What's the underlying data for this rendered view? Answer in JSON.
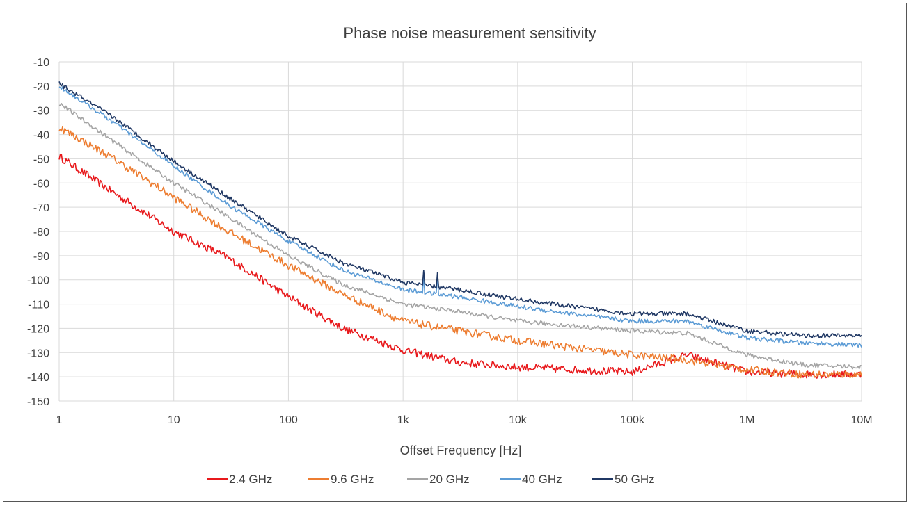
{
  "chart_data": {
    "type": "line",
    "title": "Phase noise measurement sensitivity",
    "xlabel": "Offset Frequency [Hz]",
    "ylabel": "",
    "x_scale": "log",
    "xlim": [
      1,
      10000000
    ],
    "ylim": [
      -150,
      -10
    ],
    "grid": true,
    "legend_position": "bottom",
    "x_ticks": [
      {
        "value": 1,
        "label": "1"
      },
      {
        "value": 10,
        "label": "10"
      },
      {
        "value": 100,
        "label": "100"
      },
      {
        "value": 1000,
        "label": "1k"
      },
      {
        "value": 10000,
        "label": "10k"
      },
      {
        "value": 100000,
        "label": "100k"
      },
      {
        "value": 1000000,
        "label": "1M"
      },
      {
        "value": 10000000,
        "label": "10M"
      }
    ],
    "y_ticks": [
      -10,
      -20,
      -30,
      -40,
      -50,
      -60,
      -70,
      -80,
      -90,
      -100,
      -110,
      -120,
      -130,
      -140,
      -150
    ],
    "x": [
      1,
      3,
      10,
      30,
      100,
      300,
      1000,
      3000,
      10000,
      30000,
      100000,
      300000,
      1000000,
      3000000,
      10000000
    ],
    "series": [
      {
        "name": "2.4 GHz",
        "color": "#e8191c",
        "values": [
          -49,
          -64,
          -80,
          -91,
          -107,
          -120,
          -129,
          -134,
          -136,
          -137,
          -138,
          -131,
          -138,
          -139,
          -139
        ]
      },
      {
        "name": "9.6 GHz",
        "color": "#ed7d31",
        "values": [
          -37,
          -50,
          -66,
          -80,
          -94,
          -106,
          -117,
          -121,
          -125,
          -128,
          -131,
          -133,
          -137,
          -139,
          -139
        ]
      },
      {
        "name": "20 GHz",
        "color": "#a5a5a5",
        "values": [
          -27,
          -43,
          -60,
          -74,
          -90,
          -102,
          -110,
          -113,
          -117,
          -119,
          -121,
          -122,
          -131,
          -135,
          -136
        ]
      },
      {
        "name": "40 GHz",
        "color": "#5b9bd5",
        "values": [
          -20,
          -35,
          -53,
          -69,
          -84,
          -96,
          -104,
          -107,
          -111,
          -114,
          -117,
          -117,
          -124,
          -126,
          -127
        ]
      },
      {
        "name": "50 GHz",
        "color": "#203864",
        "values": [
          -19,
          -33,
          -51,
          -66,
          -82,
          -93,
          -101,
          -104,
          -108,
          -111,
          -114,
          -114,
          -121,
          -123,
          -123
        ]
      }
    ],
    "spikes": [
      {
        "series": "40 GHz",
        "x": 1500,
        "value": -98
      },
      {
        "series": "40 GHz",
        "x": 2000,
        "value": -98
      },
      {
        "series": "50 GHz",
        "x": 1500,
        "value": -96
      },
      {
        "series": "50 GHz",
        "x": 2000,
        "value": -97
      }
    ]
  }
}
